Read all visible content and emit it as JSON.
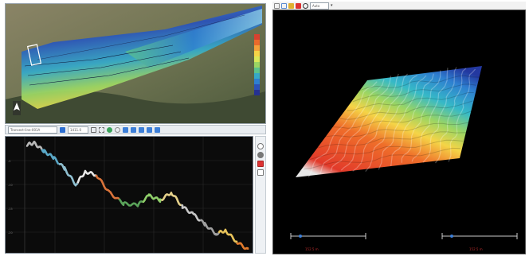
{
  "map": {
    "scale_title": "",
    "depth_legend_colors": [
      "#d7412f",
      "#ea6a2b",
      "#f3a13a",
      "#f5d447",
      "#d9e85a",
      "#9bd563",
      "#5cc38c",
      "#36a9c7",
      "#2e7fd0",
      "#2b52b8",
      "#253192"
    ],
    "north_arrow_icon": "north-arrow-icon"
  },
  "map_toolbar": {
    "file_field": "Transect-line-001A",
    "value_field": "1411.0",
    "buttons": [
      "pin-icon",
      "info-icon",
      "zoom-box-icon",
      "add-icon",
      "settings-icon",
      "prev-icon",
      "play-left-icon",
      "play-icon",
      "play-right-icon",
      "next-icon"
    ]
  },
  "profile": {
    "track_colors": [
      "#b9b9b9",
      "#5aa8c7",
      "#8fbfd0",
      "#e7e7e7",
      "#d9733a",
      "#5aa35a",
      "#8fcf6a",
      "#e4d08a",
      "#c7c7c7",
      "#a0a0a0",
      "#e8c35a",
      "#e07a2c"
    ],
    "side_buttons": [
      "circle-icon",
      "record-icon",
      "close-icon",
      "square-icon"
    ]
  },
  "view3d_toolbar": {
    "buttons": [
      "select-icon",
      "grid-icon",
      "check-icon",
      "close-icon",
      "circle-icon"
    ],
    "dropdown_value": "Auto"
  },
  "view3d": {
    "left_readout": "152.5 m",
    "right_readout": "152.5 m"
  }
}
